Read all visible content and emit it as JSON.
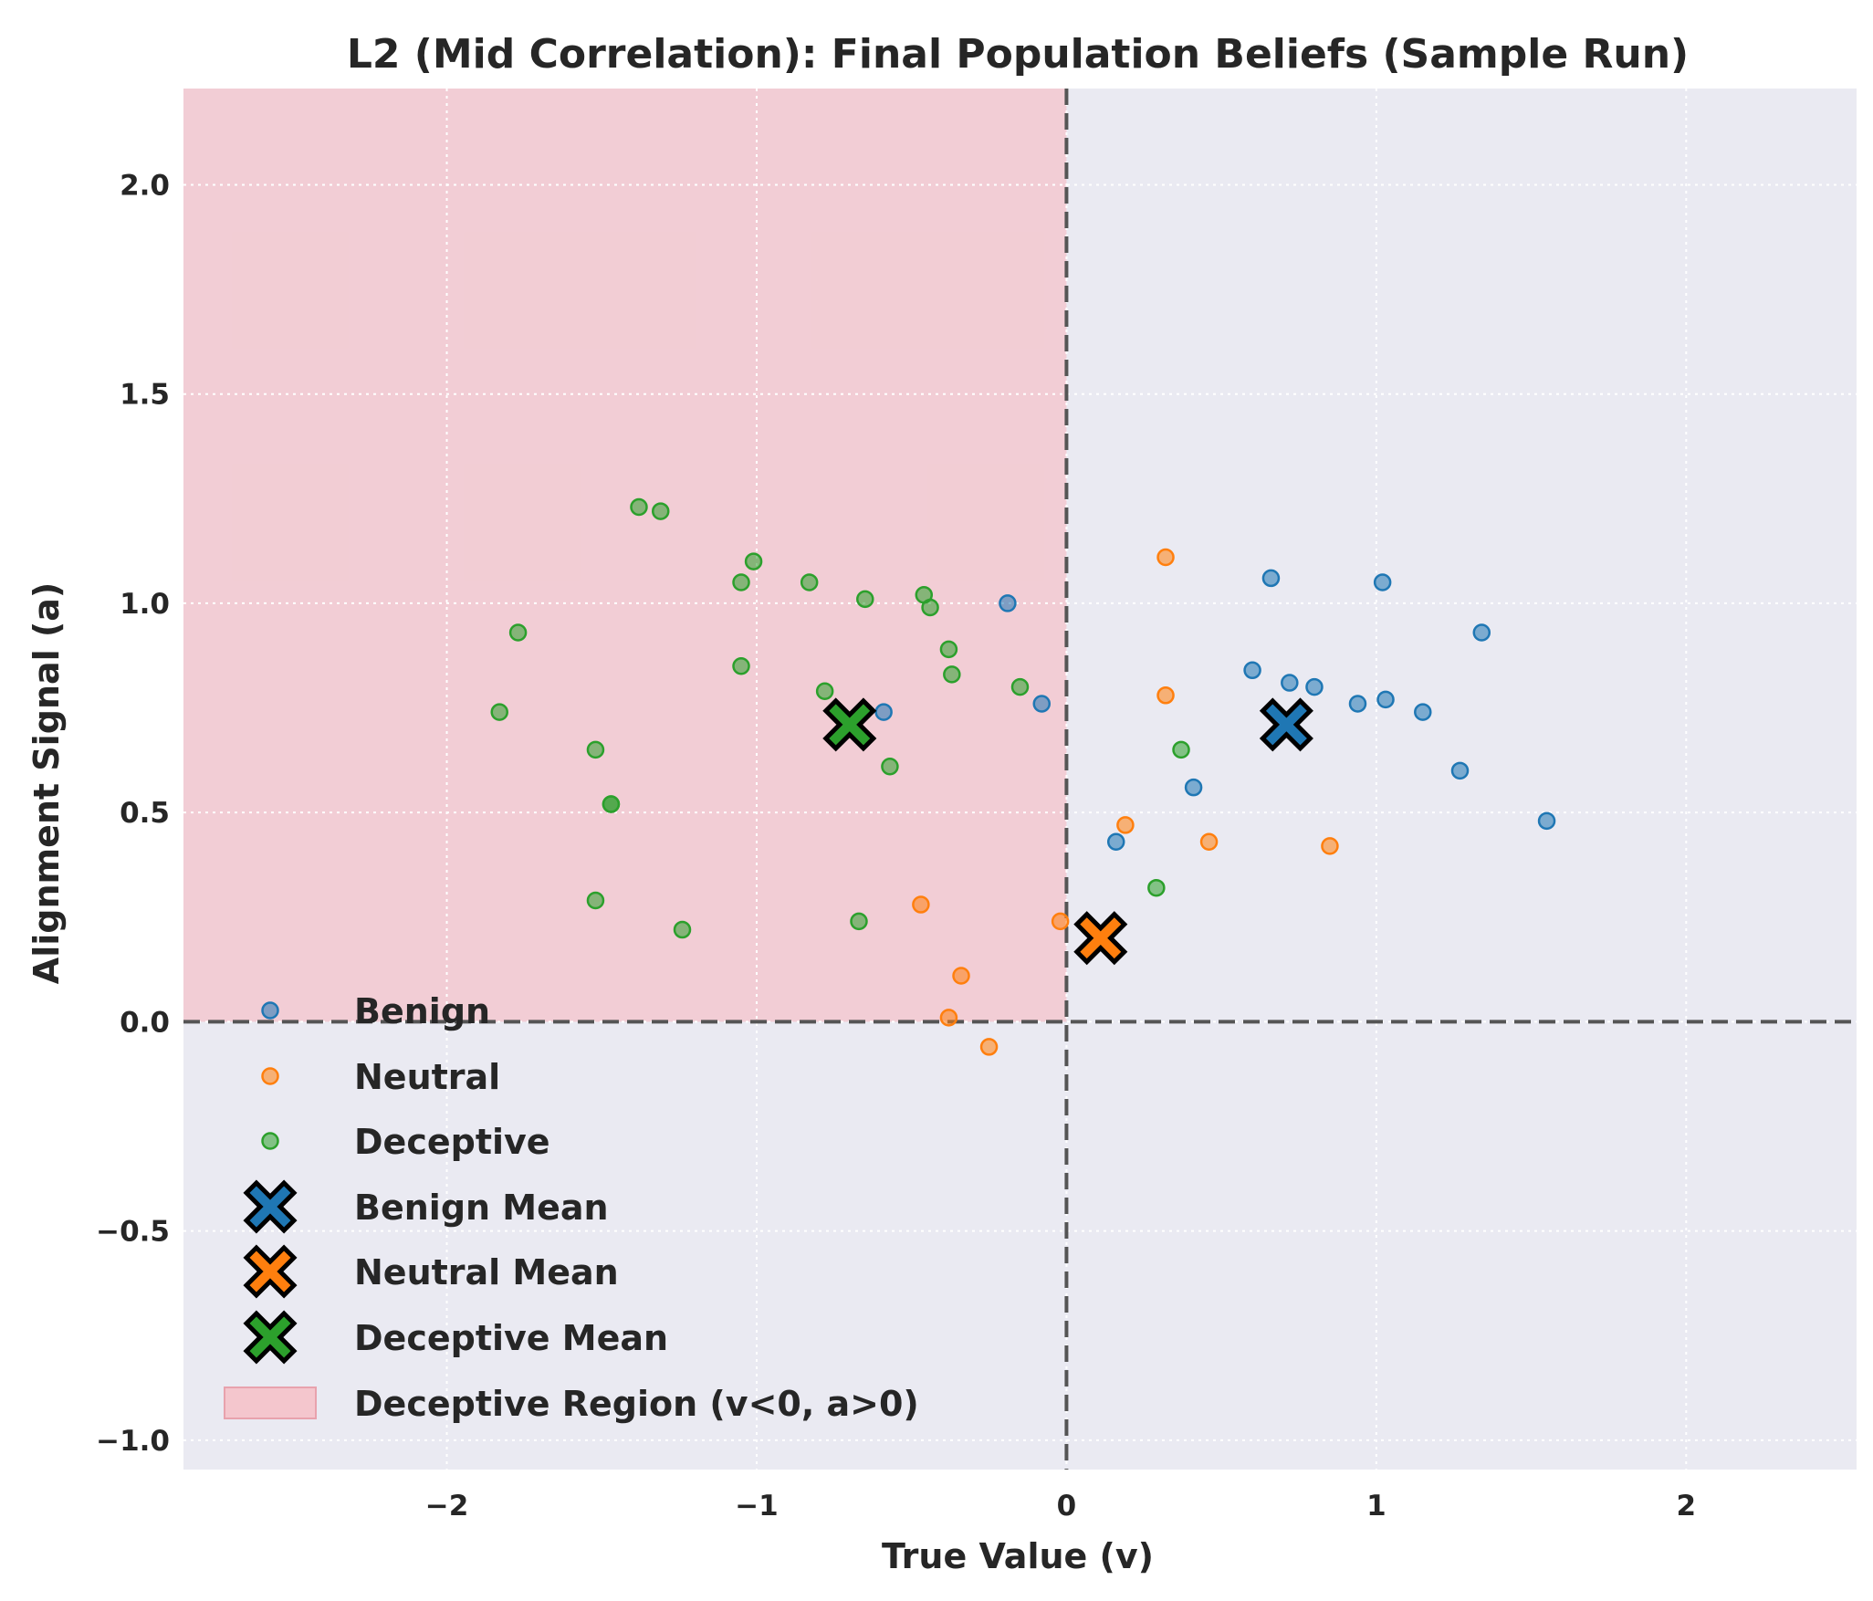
{
  "chart_data": {
    "type": "scatter",
    "title": "L2 (Mid Correlation): Final Population Beliefs (Sample Run)",
    "xlabel": "True Value (v)",
    "ylabel": "Alignment Signal (a)",
    "xlim": [
      -2.85,
      2.55
    ],
    "ylim": [
      -1.07,
      2.23
    ],
    "xticks": [
      -2,
      -1,
      0,
      1,
      2
    ],
    "xtick_labels": [
      "−2",
      "−1",
      "0",
      "1",
      "2"
    ],
    "yticks": [
      -1.0,
      -0.5,
      0.0,
      0.5,
      1.0,
      1.5,
      2.0
    ],
    "ytick_labels": [
      "−1.0",
      "−0.5",
      "0.0",
      "0.5",
      "1.0",
      "1.5",
      "2.0"
    ],
    "grid": true,
    "legend_position": "lower-left",
    "background_color": "#eaeaf2",
    "reference_lines": {
      "x": 0,
      "y": 0,
      "style": "dashed",
      "color": "#555555"
    },
    "region": {
      "label": "Deceptive Region (v<0, a>0)",
      "x": [
        -2.85,
        0
      ],
      "y": [
        0,
        2.23
      ],
      "color": "#f4c6cd"
    },
    "series": [
      {
        "name": "Benign",
        "color": "#1f77b4",
        "points": [
          [
            -0.19,
            1.0
          ],
          [
            -0.08,
            0.76
          ],
          [
            -0.59,
            0.74
          ],
          [
            0.16,
            0.43
          ],
          [
            0.41,
            0.56
          ],
          [
            0.6,
            0.84
          ],
          [
            0.66,
            1.06
          ],
          [
            0.72,
            0.81
          ],
          [
            0.8,
            0.8
          ],
          [
            0.94,
            0.76
          ],
          [
            1.02,
            1.05
          ],
          [
            1.03,
            0.77
          ],
          [
            1.15,
            0.74
          ],
          [
            1.27,
            0.6
          ],
          [
            1.34,
            0.93
          ],
          [
            1.55,
            0.48
          ]
        ]
      },
      {
        "name": "Neutral",
        "color": "#ff7f0e",
        "points": [
          [
            0.32,
            1.11
          ],
          [
            0.32,
            0.78
          ],
          [
            0.19,
            0.47
          ],
          [
            0.46,
            0.43
          ],
          [
            0.85,
            0.42
          ],
          [
            -0.47,
            0.28
          ],
          [
            -0.02,
            0.24
          ],
          [
            -0.34,
            0.11
          ],
          [
            -0.38,
            0.01
          ],
          [
            -0.25,
            -0.06
          ]
        ]
      },
      {
        "name": "Deceptive",
        "color": "#2ca02c",
        "points": [
          [
            -1.38,
            1.23
          ],
          [
            -1.31,
            1.22
          ],
          [
            -1.01,
            1.1
          ],
          [
            -1.05,
            1.05
          ],
          [
            -0.83,
            1.05
          ],
          [
            -0.46,
            1.02
          ],
          [
            -0.65,
            1.01
          ],
          [
            -0.44,
            0.99
          ],
          [
            -1.77,
            0.93
          ],
          [
            -0.38,
            0.89
          ],
          [
            -1.05,
            0.85
          ],
          [
            -0.37,
            0.83
          ],
          [
            -0.15,
            0.8
          ],
          [
            -0.78,
            0.79
          ],
          [
            -1.83,
            0.74
          ],
          [
            -1.52,
            0.65
          ],
          [
            0.37,
            0.65
          ],
          [
            -0.57,
            0.61
          ],
          [
            -1.47,
            0.52
          ],
          [
            -1.47,
            0.52
          ],
          [
            0.29,
            0.32
          ],
          [
            -1.52,
            0.29
          ],
          [
            -0.67,
            0.24
          ],
          [
            -1.24,
            0.22
          ]
        ]
      }
    ],
    "means": [
      {
        "name": "Benign Mean",
        "color": "#1f77b4",
        "x": 0.71,
        "y": 0.71
      },
      {
        "name": "Neutral Mean",
        "color": "#ff7f0e",
        "x": 0.11,
        "y": 0.2
      },
      {
        "name": "Deceptive Mean",
        "color": "#2ca02c",
        "x": -0.7,
        "y": 0.71
      }
    ],
    "legend": [
      "Benign",
      "Neutral",
      "Deceptive",
      "Benign Mean",
      "Neutral Mean",
      "Deceptive Mean",
      "Deceptive Region (v<0, a>0)"
    ]
  }
}
